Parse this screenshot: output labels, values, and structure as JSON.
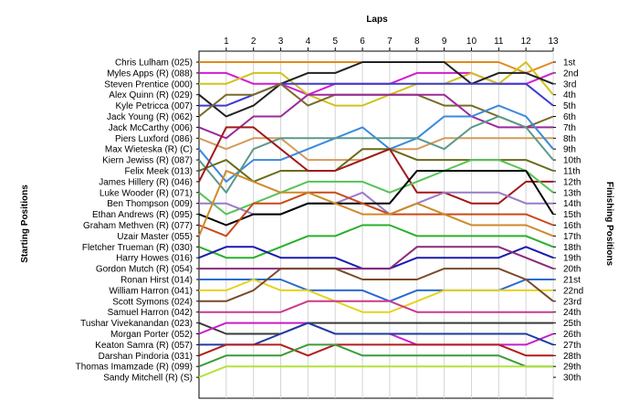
{
  "chart_data": {
    "type": "line",
    "title": "Laps",
    "xlabel": "Laps",
    "ylabel_left": "Starting Positions",
    "ylabel_right": "Finishing Positions",
    "x_ticks": [
      "1",
      "2",
      "3",
      "4",
      "5",
      "6",
      "7",
      "8",
      "9",
      "10",
      "11",
      "12",
      "13"
    ],
    "finishing_ticks": [
      "1st",
      "2nd",
      "3rd",
      "4th",
      "5th",
      "6th",
      "7th",
      "8th",
      "9th",
      "10th",
      "11th",
      "12th",
      "13th",
      "14th",
      "15th",
      "16th",
      "17th",
      "18th",
      "19th",
      "20th",
      "21st",
      "22nd",
      "23rd",
      "24th",
      "25th",
      "26th",
      "27th",
      "28th",
      "29th",
      "30th"
    ],
    "grid": true,
    "series": [
      {
        "name": "Chris Lulham (025)",
        "color": "#e08a1e",
        "start": 1,
        "positions": [
          1,
          1,
          1,
          1,
          1,
          1,
          1,
          1,
          1,
          1,
          1,
          2,
          1
        ]
      },
      {
        "name": "Myles Apps  (R) (088)",
        "color": "#d01ed0",
        "start": 2,
        "positions": [
          2,
          3,
          3,
          4,
          3,
          3,
          3,
          2,
          2,
          2,
          3,
          3,
          2
        ]
      },
      {
        "name": "Steven Prentice (000)",
        "color": "#d2c21e",
        "start": 3,
        "positions": [
          3,
          2,
          2,
          4,
          5,
          5,
          4,
          3,
          3,
          2,
          3,
          1,
          4
        ]
      },
      {
        "name": "Alex Quinn (R) (029)",
        "color": "#222222",
        "start": 4,
        "positions": [
          6,
          5,
          3,
          2,
          2,
          1,
          1,
          1,
          1,
          3,
          2,
          2,
          3
        ]
      },
      {
        "name": "Kyle Petricca (007)",
        "color": "#3c3ccd",
        "start": 5,
        "positions": [
          5,
          4,
          3,
          3,
          3,
          3,
          3,
          3,
          3,
          3,
          3,
          3,
          5
        ]
      },
      {
        "name": "Jack Young  (R) (062)",
        "color": "#7a6a2a",
        "start": 6,
        "positions": [
          4,
          4,
          3,
          5,
          4,
          4,
          4,
          4,
          5,
          5,
          6,
          7,
          6
        ]
      },
      {
        "name": "Jack McCarthy (006)",
        "color": "#9a2a9a",
        "start": 7,
        "positions": [
          8,
          6,
          6,
          4,
          4,
          4,
          4,
          4,
          4,
          6,
          7,
          7,
          7
        ]
      },
      {
        "name": "Piers Luxford (086)",
        "color": "#d59a5a",
        "start": 8,
        "positions": [
          9,
          8,
          8,
          10,
          10,
          10,
          9,
          9,
          8,
          8,
          8,
          8,
          8
        ]
      },
      {
        "name": "Max Wieteska (R) (C)",
        "color": "#3a8adc",
        "start": 9,
        "positions": [
          12,
          10,
          10,
          9,
          8,
          7,
          9,
          8,
          6,
          6,
          5,
          6,
          9
        ]
      },
      {
        "name": "Kiern Jewiss  (R) (087)",
        "color": "#5a9a8a",
        "start": 10,
        "positions": [
          13,
          9,
          8,
          8,
          8,
          8,
          8,
          8,
          9,
          7,
          6,
          7,
          10
        ]
      },
      {
        "name": "Felix Meek (013)",
        "color": "#6a6a1a",
        "start": 11,
        "positions": [
          10,
          12,
          11,
          11,
          11,
          9,
          9,
          10,
          10,
          10,
          10,
          10,
          11
        ]
      },
      {
        "name": "James Hillery (R) (046)",
        "color": "#a01a1a",
        "start": 12,
        "positions": [
          7,
          7,
          9,
          11,
          11,
          10,
          9,
          13,
          13,
          14,
          14,
          12,
          12
        ]
      },
      {
        "name": "Luke Wooder (R) (071)",
        "color": "#56c356",
        "start": 13,
        "positions": [
          15,
          14,
          13,
          12,
          12,
          12,
          13,
          12,
          11,
          10,
          10,
          11,
          13
        ]
      },
      {
        "name": "Ben Thompson (009)",
        "color": "#9a7ac8",
        "start": 14,
        "positions": [
          14,
          15,
          15,
          14,
          14,
          13,
          15,
          14,
          13,
          13,
          13,
          14,
          14
        ]
      },
      {
        "name": "Ethan Andrews (R) (095)",
        "color": "#000000",
        "start": 15,
        "positions": [
          16,
          15,
          15,
          14,
          14,
          14,
          14,
          11,
          11,
          11,
          11,
          11,
          15
        ]
      },
      {
        "name": "Graham Methven (R) (077)",
        "color": "#c84a1a",
        "start": 16,
        "positions": [
          17,
          14,
          14,
          13,
          13,
          14,
          15,
          15,
          15,
          15,
          15,
          15,
          16
        ]
      },
      {
        "name": "Uzair Master (055)",
        "color": "#cd8a2a",
        "start": 17,
        "positions": [
          11,
          12,
          13,
          13,
          14,
          15,
          15,
          14,
          15,
          16,
          16,
          16,
          17
        ]
      },
      {
        "name": "Fletcher Trueman (R) (030)",
        "color": "#2ab02a",
        "start": 18,
        "positions": [
          19,
          19,
          18,
          17,
          17,
          16,
          16,
          17,
          17,
          17,
          17,
          17,
          18
        ]
      },
      {
        "name": "Harry Howes (016)",
        "color": "#1a1ab0",
        "start": 19,
        "positions": [
          18,
          18,
          19,
          19,
          19,
          20,
          20,
          19,
          19,
          19,
          19,
          18,
          19
        ]
      },
      {
        "name": "Gordon Mutch (R) (054)",
        "color": "#8a2a7a",
        "start": 20,
        "positions": [
          20,
          20,
          20,
          20,
          20,
          20,
          20,
          18,
          18,
          18,
          18,
          19,
          20
        ]
      },
      {
        "name": "Ronan Hirst (014)",
        "color": "#2a6ad0",
        "start": 21,
        "positions": [
          21,
          21,
          21,
          22,
          22,
          22,
          23,
          22,
          22,
          22,
          22,
          21,
          21
        ]
      },
      {
        "name": "William Harron (041)",
        "color": "#e6d21e",
        "start": 22,
        "positions": [
          22,
          21,
          22,
          22,
          23,
          24,
          24,
          23,
          22,
          22,
          22,
          22,
          22
        ]
      },
      {
        "name": "Scott Symons (024)",
        "color": "#7a4a2a",
        "start": 23,
        "positions": [
          23,
          22,
          20,
          20,
          20,
          21,
          21,
          21,
          20,
          20,
          20,
          21,
          23
        ]
      },
      {
        "name": "Samuel Harron (042)",
        "color": "#cc3a8a",
        "start": 24,
        "positions": [
          24,
          24,
          24,
          23,
          23,
          23,
          23,
          24,
          24,
          24,
          24,
          24,
          24
        ]
      },
      {
        "name": "Tushar Vivekanandan (023)",
        "color": "#3a3a3a",
        "start": 25,
        "positions": [
          26,
          26,
          26,
          25,
          25,
          25,
          25,
          25,
          25,
          25,
          25,
          25,
          25
        ]
      },
      {
        "name": "Morgan Porter (052)",
        "color": "#c81ec8",
        "start": 26,
        "positions": [
          25,
          25,
          25,
          25,
          26,
          26,
          26,
          27,
          27,
          27,
          27,
          27,
          26
        ]
      },
      {
        "name": "Keaton Samra (R) (057)",
        "color": "#1e3ca0",
        "start": 27,
        "positions": [
          27,
          27,
          26,
          25,
          26,
          26,
          26,
          26,
          26,
          26,
          26,
          26,
          27
        ]
      },
      {
        "name": "Darshan Pindoria (031)",
        "color": "#b01e1e",
        "start": 28,
        "positions": [
          27,
          27,
          27,
          28,
          27,
          27,
          27,
          27,
          27,
          27,
          27,
          28,
          28
        ]
      },
      {
        "name": "Thomas Imamzade (R) (099)",
        "color": "#3c9c3c",
        "start": 29,
        "positions": [
          28,
          28,
          28,
          27,
          27,
          28,
          28,
          28,
          28,
          28,
          28,
          29,
          29
        ]
      },
      {
        "name": "Sandy Mitchell (R) (S)",
        "color": "#b4e23c",
        "start": 30,
        "positions": [
          29,
          29,
          29,
          29,
          29,
          29,
          29,
          29,
          29,
          29,
          29,
          29,
          29
        ]
      }
    ]
  }
}
